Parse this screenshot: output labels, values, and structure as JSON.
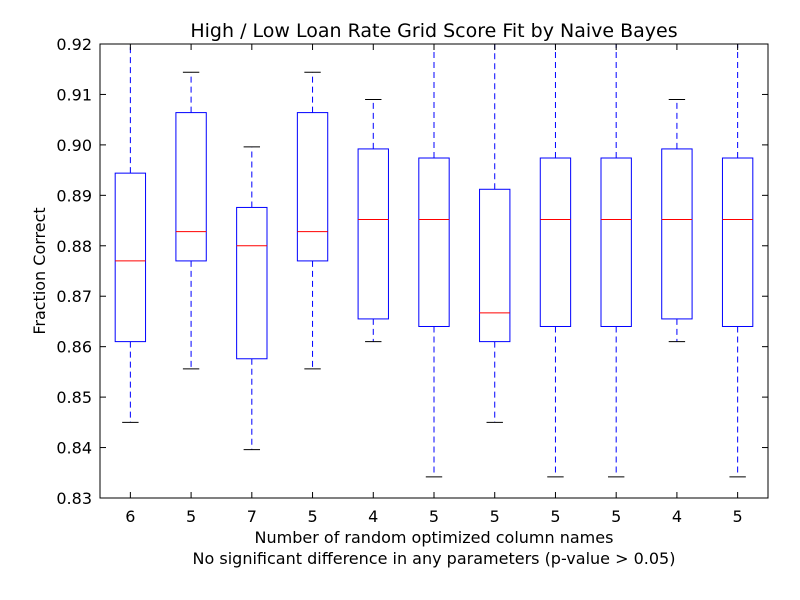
{
  "chart_data": {
    "type": "box",
    "title": "High / Low Loan Rate Grid Score Fit by Naive Bayes",
    "xlabel": "Number of random optimized column names",
    "xlabel_sub": "No significant difference in any parameters (p-value > 0.05)",
    "ylabel": "Fraction Correct",
    "ylim": [
      0.83,
      0.92
    ],
    "yticks": [
      "0.83",
      "0.84",
      "0.85",
      "0.86",
      "0.87",
      "0.88",
      "0.89",
      "0.90",
      "0.91",
      "0.92"
    ],
    "categories": [
      "6",
      "5",
      "7",
      "5",
      "4",
      "5",
      "5",
      "5",
      "5",
      "4",
      "5"
    ],
    "boxes": [
      {
        "whisker_low": 0.845,
        "q1": 0.861,
        "median": 0.877,
        "q3": 0.8944,
        "whisker_high": 0.92
      },
      {
        "whisker_low": 0.8556,
        "q1": 0.877,
        "median": 0.8828,
        "q3": 0.9064,
        "whisker_high": 0.9144
      },
      {
        "whisker_low": 0.8396,
        "q1": 0.8576,
        "median": 0.88,
        "q3": 0.8876,
        "whisker_high": 0.8996
      },
      {
        "whisker_low": 0.8556,
        "q1": 0.877,
        "median": 0.8828,
        "q3": 0.9064,
        "whisker_high": 0.9144
      },
      {
        "whisker_low": 0.861,
        "q1": 0.8655,
        "median": 0.8852,
        "q3": 0.8992,
        "whisker_high": 0.909
      },
      {
        "whisker_low": 0.8342,
        "q1": 0.864,
        "median": 0.8852,
        "q3": 0.8974,
        "whisker_high": 0.92
      },
      {
        "whisker_low": 0.845,
        "q1": 0.861,
        "median": 0.8667,
        "q3": 0.8912,
        "whisker_high": 0.92
      },
      {
        "whisker_low": 0.8342,
        "q1": 0.864,
        "median": 0.8852,
        "q3": 0.8974,
        "whisker_high": 0.92
      },
      {
        "whisker_low": 0.8342,
        "q1": 0.864,
        "median": 0.8852,
        "q3": 0.8974,
        "whisker_high": 0.92
      },
      {
        "whisker_low": 0.861,
        "q1": 0.8655,
        "median": 0.8852,
        "q3": 0.8992,
        "whisker_high": 0.909
      },
      {
        "whisker_low": 0.8342,
        "q1": 0.864,
        "median": 0.8852,
        "q3": 0.8974,
        "whisker_high": 0.92
      }
    ],
    "grid": false,
    "colors": {
      "box": "#0000ff",
      "median": "#ff0000",
      "whisker_cap": "#000000"
    }
  }
}
